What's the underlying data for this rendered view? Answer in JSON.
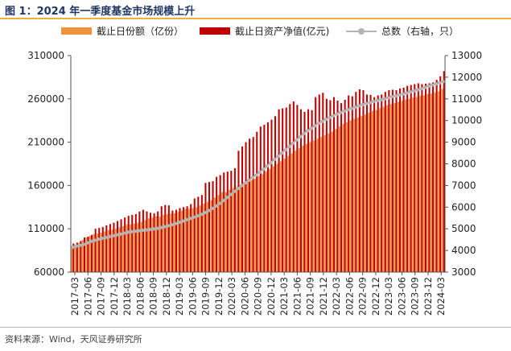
{
  "header": {
    "title": "图 1：2024 年一季度基金市场规模上升"
  },
  "footer": {
    "source": "资料来源：Wind，天风证券研究所"
  },
  "colors": {
    "bar_orange": "#f0913c",
    "bar_red": "#c00000",
    "line_gray": "#b4b4b4",
    "title_blue": "#1f3864",
    "accent_gold": "#e8b23a"
  },
  "chart_data": {
    "type": "bar",
    "legend_position": "top",
    "grid": false,
    "x_tick_labels": [
      "2017-03",
      "2017-06",
      "2017-09",
      "2017-12",
      "2018-03",
      "2018-06",
      "2018-09",
      "2018-12",
      "2019-03",
      "2019-06",
      "2019-09",
      "2019-12",
      "2020-03",
      "2020-06",
      "2020-09",
      "2020-12",
      "2021-03",
      "2021-06",
      "2021-09",
      "2021-12",
      "2022-03",
      "2022-06",
      "2022-09",
      "2022-12",
      "2023-03",
      "2023-06",
      "2023-09",
      "2023-12",
      "2024-03"
    ],
    "y_left": {
      "ylim": [
        60000,
        310000
      ],
      "ticks": [
        "60000",
        "110000",
        "160000",
        "210000",
        "260000",
        "310000"
      ]
    },
    "y_right": {
      "ylim": [
        3000,
        13000
      ],
      "ticks": [
        "3000",
        "4000",
        "5000",
        "6000",
        "7000",
        "8000",
        "9000",
        "10000",
        "11000",
        "12000",
        "13000"
      ]
    },
    "series": [
      {
        "name": "截止日份额（亿份）",
        "axis": "left",
        "kind": "bar",
        "values": [
          88000,
          91000,
          94000,
          97000,
          100000,
          102000,
          104000,
          104500,
          105500,
          107000,
          108500,
          109000,
          110000,
          111500,
          113000,
          115000,
          115000,
          116000,
          117000,
          118000,
          120000,
          122000,
          123000,
          124500,
          124000,
          126000,
          127000,
          127500,
          128000,
          129500,
          131000,
          133000,
          133000,
          134000,
          135000,
          137000,
          139000,
          141000,
          143000,
          146000,
          149000,
          152000,
          152500,
          155000,
          157000,
          159000,
          161000,
          163000,
          164000,
          166000,
          168000,
          171000,
          173000,
          176000,
          179000,
          182000,
          185000,
          188000,
          191000,
          194000,
          197000,
          200000,
          203000,
          206000,
          208000,
          210000,
          212000,
          214000,
          216000,
          218000,
          220000,
          222000,
          225000,
          228000,
          231000,
          233000,
          235000,
          237000,
          238500,
          240000,
          242000,
          244000,
          246000,
          247000,
          249000,
          251000,
          252500,
          254000,
          255000,
          256500,
          258000,
          259000,
          260000,
          261500,
          262000,
          263500,
          264000,
          265500,
          266000,
          267500,
          268500,
          271500
        ]
      },
      {
        "name": "截止日资产净值(亿元)",
        "axis": "left",
        "kind": "bar",
        "values": [
          93000,
          94000,
          96000,
          100000,
          101000,
          103000,
          110000,
          111000,
          112000,
          114000,
          115500,
          117000,
          119000,
          121000,
          123000,
          125000,
          126000,
          127000,
          130000,
          132000,
          130000,
          128500,
          128000,
          130000,
          136000,
          137500,
          137000,
          131000,
          132000,
          134000,
          135000,
          136000,
          138500,
          145000,
          147000,
          149000,
          163000,
          164000,
          165000,
          170000,
          172000,
          175000,
          176000,
          177000,
          180000,
          200000,
          205000,
          210000,
          214000,
          216000,
          222000,
          228000,
          230000,
          233000,
          236000,
          240000,
          248000,
          249000,
          250000,
          254000,
          257000,
          253000,
          248000,
          245000,
          248000,
          247000,
          262000,
          265000,
          267000,
          260000,
          258500,
          262000,
          258000,
          255000,
          259000,
          264000,
          263000,
          268000,
          271000,
          270000,
          265000,
          264500,
          262000,
          264000,
          265000,
          268000,
          270000,
          270500,
          270000,
          272000,
          273000,
          275000,
          276000,
          277000,
          278000,
          277000,
          277500,
          278000,
          279000,
          282000,
          286000,
          292000
        ]
      },
      {
        "name": "总数（右轴，只）",
        "axis": "right",
        "kind": "line",
        "values": [
          4150,
          4200,
          4240,
          4280,
          4350,
          4420,
          4470,
          4520,
          4560,
          4600,
          4640,
          4680,
          4720,
          4760,
          4800,
          4840,
          4870,
          4890,
          4910,
          4930,
          4950,
          4970,
          4990,
          5020,
          5060,
          5100,
          5140,
          5190,
          5240,
          5300,
          5360,
          5420,
          5480,
          5540,
          5600,
          5670,
          5750,
          5840,
          5940,
          6050,
          6170,
          6300,
          6440,
          6580,
          6720,
          6860,
          6990,
          7120,
          7240,
          7360,
          7480,
          7610,
          7750,
          7900,
          8050,
          8200,
          8350,
          8500,
          8650,
          8800,
          8950,
          9100,
          9250,
          9400,
          9520,
          9640,
          9760,
          9870,
          9960,
          10050,
          10140,
          10220,
          10300,
          10370,
          10440,
          10500,
          10560,
          10620,
          10680,
          10730,
          10780,
          10830,
          10880,
          10920,
          10960,
          11000,
          11050,
          11100,
          11140,
          11180,
          11220,
          11270,
          11320,
          11370,
          11420,
          11470,
          11530,
          11590,
          11640,
          11690,
          11740,
          11800
        ]
      }
    ]
  }
}
